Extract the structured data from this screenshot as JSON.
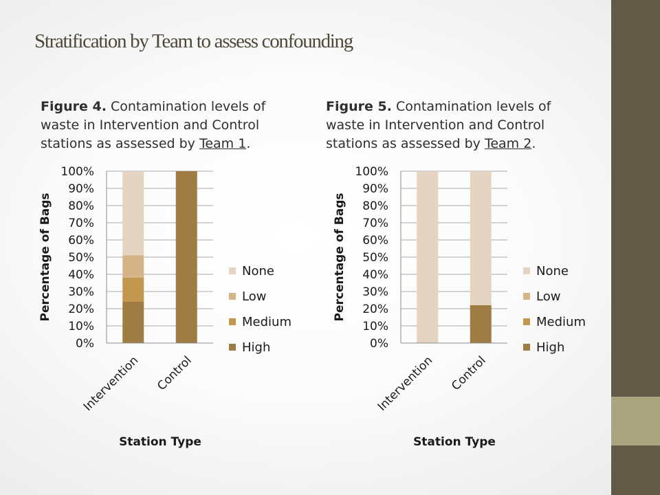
{
  "slide": {
    "title": "Stratification by Team to assess confounding"
  },
  "colors": {
    "sidebar": "#625a47",
    "sidebar_accent": "#aba57f",
    "title_text": "#4d4838"
  },
  "figures": [
    {
      "label": "Figure 4.",
      "text": " Contamination levels of waste in Intervention and Control stations as assessed by ",
      "team": "Team 1",
      "end": "."
    },
    {
      "label": "Figure 5.",
      "text": " Contamination levels of waste in Intervention and Control stations as assessed by ",
      "team": "Team 2",
      "end": "."
    }
  ],
  "chart_data": [
    {
      "type": "bar",
      "stacked": true,
      "categories": [
        "Intervention",
        "Control"
      ],
      "series": [
        {
          "name": "High",
          "color": "#a07c45",
          "values": [
            24,
            100
          ]
        },
        {
          "name": "Medium",
          "color": "#c3974d",
          "values": [
            14,
            0
          ]
        },
        {
          "name": "Low",
          "color": "#d5b488",
          "values": [
            13,
            0
          ]
        },
        {
          "name": "None",
          "color": "#e5d4c1",
          "values": [
            49,
            0
          ]
        }
      ],
      "xlabel": "Station Type",
      "ylabel": "Percentage of Bags",
      "ylim": [
        0,
        100
      ],
      "yticks": [
        "0%",
        "10%",
        "20%",
        "30%",
        "40%",
        "50%",
        "60%",
        "70%",
        "80%",
        "90%",
        "100%"
      ],
      "legend": [
        "None",
        "Low",
        "Medium",
        "High"
      ],
      "legend_position": "right",
      "grid": true
    },
    {
      "type": "bar",
      "stacked": true,
      "categories": [
        "Intervention",
        "Control"
      ],
      "series": [
        {
          "name": "High",
          "color": "#a07c45",
          "values": [
            0,
            22
          ]
        },
        {
          "name": "Medium",
          "color": "#c3974d",
          "values": [
            0,
            0
          ]
        },
        {
          "name": "Low",
          "color": "#d5b488",
          "values": [
            0,
            0
          ]
        },
        {
          "name": "None",
          "color": "#e5d4c1",
          "values": [
            100,
            78
          ]
        }
      ],
      "xlabel": "Station Type",
      "ylabel": "Percentage of Bags",
      "ylim": [
        0,
        100
      ],
      "yticks": [
        "0%",
        "10%",
        "20%",
        "30%",
        "40%",
        "50%",
        "60%",
        "70%",
        "80%",
        "90%",
        "100%"
      ],
      "legend": [
        "None",
        "Low",
        "Medium",
        "High"
      ],
      "legend_position": "right",
      "grid": true
    }
  ]
}
